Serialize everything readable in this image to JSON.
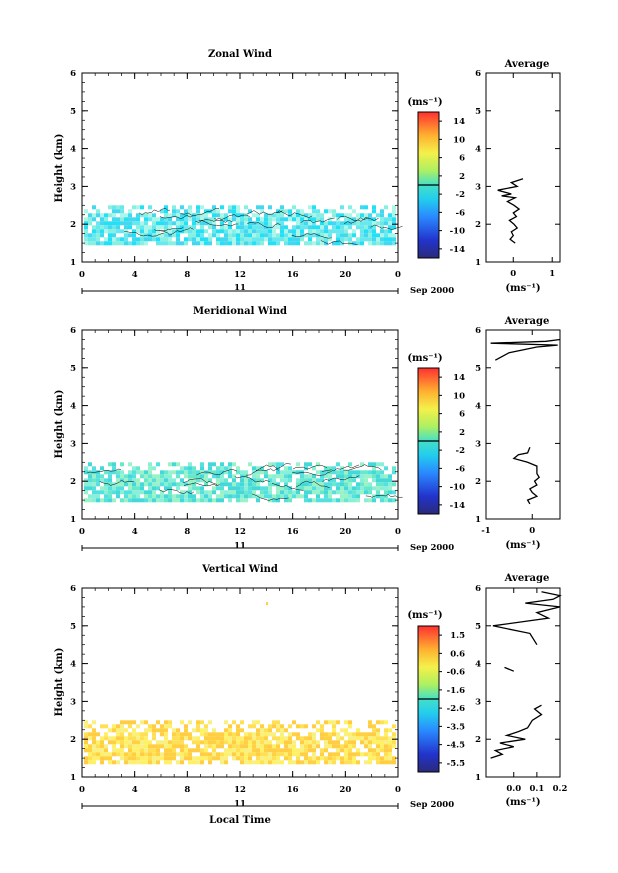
{
  "figure": {
    "date_label": "Sep 2000",
    "day_label": "11",
    "xlabel_bottom": "Local Time",
    "unit_label": "(ms⁻¹)",
    "avg_title": "Average"
  },
  "chart_data": [
    {
      "type": "heatmap",
      "title": "Zonal Wind",
      "xlabel": "",
      "ylabel": "Height (km)",
      "x_ticks": [
        "0",
        "4",
        "8",
        "12",
        "16",
        "20",
        "0"
      ],
      "xlim": [
        0,
        24
      ],
      "y_ticks": [
        "1",
        "2",
        "3",
        "4",
        "5",
        "6"
      ],
      "ylim": [
        1,
        6
      ],
      "data_rows": {
        "height_range_km": [
          1.45,
          2.5
        ],
        "dominant_value_ms": -1
      },
      "colorbar": {
        "unit": "(ms⁻¹)",
        "ticks": [
          "14",
          "10",
          "6",
          "2",
          "-2",
          "-6",
          "-10",
          "-14"
        ],
        "range": [
          -16,
          16
        ]
      },
      "profile": {
        "title": "Average",
        "x_ticks": [
          "0",
          "1"
        ],
        "xlim": [
          -0.7,
          1.2
        ],
        "xlabel": "(ms⁻¹)",
        "y_ticks": [
          "1",
          "2",
          "3",
          "4",
          "5",
          "6"
        ],
        "ylim": [
          1,
          6
        ],
        "points": [
          [
            0.05,
            1.5
          ],
          [
            -0.08,
            1.6
          ],
          [
            0.0,
            1.7
          ],
          [
            -0.05,
            1.8
          ],
          [
            0.1,
            1.9
          ],
          [
            0.02,
            2.0
          ],
          [
            -0.1,
            2.1
          ],
          [
            0.08,
            2.2
          ],
          [
            0.0,
            2.3
          ],
          [
            0.15,
            2.4
          ],
          [
            0.02,
            2.5
          ],
          [
            -0.15,
            2.6
          ],
          [
            0.05,
            2.7
          ],
          [
            -0.3,
            2.75
          ],
          [
            -0.05,
            2.8
          ],
          [
            -0.4,
            2.9
          ],
          [
            0.1,
            3.0
          ],
          [
            -0.05,
            3.1
          ],
          [
            0.25,
            3.2
          ]
        ]
      }
    },
    {
      "type": "heatmap",
      "title": "Meridional Wind",
      "xlabel": "",
      "ylabel": "Height (km)",
      "x_ticks": [
        "0",
        "4",
        "8",
        "12",
        "16",
        "20",
        "0"
      ],
      "xlim": [
        0,
        24
      ],
      "y_ticks": [
        "1",
        "2",
        "3",
        "4",
        "5",
        "6"
      ],
      "ylim": [
        1,
        6
      ],
      "data_rows": {
        "height_range_km": [
          1.45,
          2.5
        ],
        "dominant_value_ms": -1
      },
      "colorbar": {
        "unit": "(ms⁻¹)",
        "ticks": [
          "14",
          "10",
          "6",
          "2",
          "-2",
          "-6",
          "-10",
          "-14"
        ],
        "range": [
          -16,
          16
        ]
      },
      "profile": {
        "title": "Average",
        "x_ticks": [
          "-1",
          "0"
        ],
        "xlim": [
          -1,
          0.6
        ],
        "xlabel": "(ms⁻¹)",
        "y_ticks": [
          "1",
          "2",
          "3",
          "4",
          "5",
          "6"
        ],
        "ylim": [
          1,
          6
        ],
        "points": [
          [
            -0.05,
            1.4
          ],
          [
            -0.1,
            1.5
          ],
          [
            0.1,
            1.6
          ],
          [
            0.0,
            1.7
          ],
          [
            -0.05,
            1.8
          ],
          [
            0.1,
            1.9
          ],
          [
            0.05,
            2.0
          ],
          [
            0.15,
            2.1
          ],
          [
            0.1,
            2.2
          ],
          [
            0.1,
            2.4
          ],
          [
            -0.1,
            2.5
          ],
          [
            -0.4,
            2.6
          ],
          [
            -0.3,
            2.7
          ],
          [
            -0.1,
            2.75
          ],
          [
            -0.05,
            2.9
          ]
        ],
        "points_top": [
          [
            -0.8,
            5.2
          ],
          [
            -0.5,
            5.4
          ],
          [
            0.1,
            5.55
          ],
          [
            0.55,
            5.6
          ],
          [
            -0.9,
            5.65
          ],
          [
            0.3,
            5.7
          ],
          [
            0.6,
            5.75
          ]
        ]
      }
    },
    {
      "type": "heatmap",
      "title": "Vertical Wind",
      "xlabel": "Local Time",
      "ylabel": "Height (km)",
      "x_ticks": [
        "0",
        "4",
        "8",
        "12",
        "16",
        "20",
        "0"
      ],
      "xlim": [
        0,
        24
      ],
      "y_ticks": [
        "1",
        "2",
        "3",
        "4",
        "5",
        "6"
      ],
      "ylim": [
        1,
        6
      ],
      "data_rows": {
        "height_range_km": [
          1.4,
          2.5
        ],
        "dominant_value_ms": 0.4
      },
      "colorbar": {
        "unit": "(ms⁻¹)",
        "ticks": [
          "1.5",
          "0.6",
          "-0.6",
          "-1.6",
          "-2.6",
          "-3.5",
          "-4.5",
          "-5.5"
        ],
        "range": [
          -6,
          2
        ]
      },
      "profile": {
        "title": "Average",
        "x_ticks": [
          "0.0",
          "0.1",
          "0.2"
        ],
        "xlim": [
          -0.12,
          0.2
        ],
        "xlabel": "(ms⁻¹)",
        "y_ticks": [
          "1",
          "2",
          "3",
          "4",
          "5",
          "6"
        ],
        "ylim": [
          1,
          6
        ],
        "points": [
          [
            -0.1,
            1.5
          ],
          [
            -0.05,
            1.6
          ],
          [
            -0.08,
            1.7
          ],
          [
            0.0,
            1.8
          ],
          [
            -0.06,
            1.9
          ],
          [
            0.05,
            2.0
          ],
          [
            -0.03,
            2.1
          ],
          [
            0.02,
            2.2
          ],
          [
            0.06,
            2.3
          ],
          [
            0.08,
            2.5
          ],
          [
            0.12,
            2.65
          ],
          [
            0.09,
            2.8
          ],
          [
            0.12,
            2.9
          ]
        ],
        "points_mid": [
          [
            0.0,
            3.8
          ],
          [
            -0.04,
            3.9
          ]
        ],
        "points_top": [
          [
            0.1,
            4.5
          ],
          [
            0.07,
            4.8
          ],
          [
            -0.09,
            5.0
          ],
          [
            0.15,
            5.2
          ],
          [
            0.1,
            5.35
          ],
          [
            0.2,
            5.5
          ],
          [
            0.05,
            5.6
          ],
          [
            0.17,
            5.7
          ],
          [
            0.2,
            5.8
          ],
          [
            0.12,
            5.9
          ]
        ]
      }
    }
  ]
}
